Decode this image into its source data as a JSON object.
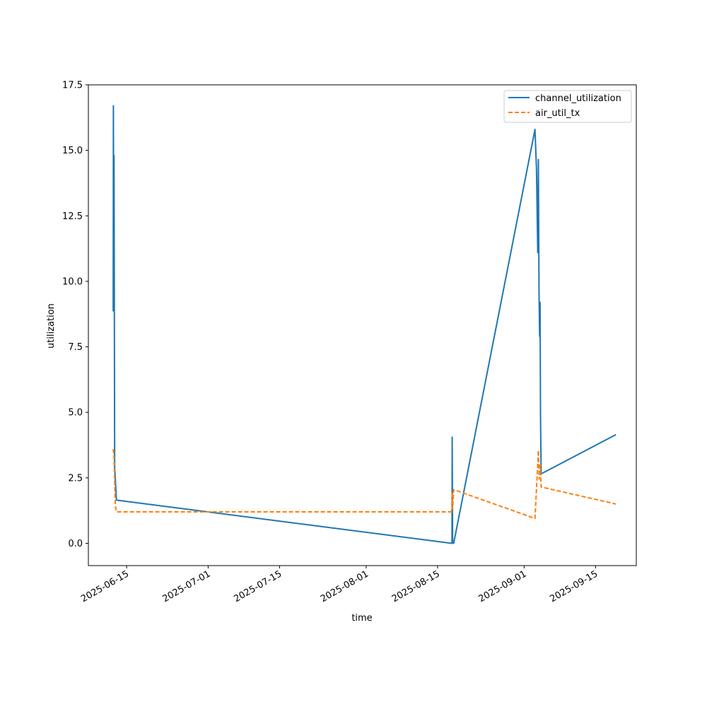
{
  "chart_data": {
    "type": "line",
    "title": "",
    "xlabel": "time",
    "ylabel": "utilization",
    "x_ticks": [
      "2025-06-15",
      "2025-07-01",
      "2025-07-15",
      "2025-08-01",
      "2025-08-15",
      "2025-09-01",
      "2025-09-15"
    ],
    "x_range": [
      "2025-06-07 12:00",
      "2025-09-23 00:00"
    ],
    "y_ticks": [
      0.0,
      2.5,
      5.0,
      7.5,
      10.0,
      12.5,
      15.0,
      17.5
    ],
    "y_tick_labels": [
      "0.0",
      "2.5",
      "5.0",
      "7.5",
      "10.0",
      "12.5",
      "15.0",
      "17.5"
    ],
    "ylim": [
      -0.85,
      17.5
    ],
    "grid": false,
    "legend_position": "top-right",
    "series": [
      {
        "name": "channel_utilization",
        "color": "#1f77b4",
        "dash": "solid",
        "points": [
          [
            "2025-06-12 09:00",
            8.85
          ],
          [
            "2025-06-12 10:00",
            16.7
          ],
          [
            "2025-06-12 12:00",
            9.0
          ],
          [
            "2025-06-12 13:00",
            14.8
          ],
          [
            "2025-06-12 16:00",
            2.9
          ],
          [
            "2025-06-13 00:00",
            1.65
          ],
          [
            "2025-08-17 20:00",
            0.0
          ],
          [
            "2025-08-17 21:00",
            4.05
          ],
          [
            "2025-08-17 23:00",
            0.05
          ],
          [
            "2025-08-18 04:00",
            0.0
          ],
          [
            "2025-09-03 03:00",
            15.8
          ],
          [
            "2025-09-03 10:00",
            14.3
          ],
          [
            "2025-09-03 16:00",
            11.1
          ],
          [
            "2025-09-03 19:00",
            14.65
          ],
          [
            "2025-09-03 22:00",
            9.6
          ],
          [
            "2025-09-04 01:00",
            7.9
          ],
          [
            "2025-09-04 03:00",
            9.2
          ],
          [
            "2025-09-04 05:00",
            4.95
          ],
          [
            "2025-09-04 08:00",
            2.65
          ],
          [
            "2025-09-19 00:00",
            4.15
          ]
        ]
      },
      {
        "name": "air_util_tx",
        "color": "#ff7f0e",
        "dash": "dashed",
        "points": [
          [
            "2025-06-12 09:00",
            3.6
          ],
          [
            "2025-06-12 13:00",
            3.3
          ],
          [
            "2025-06-12 19:00",
            1.45
          ],
          [
            "2025-06-13 00:00",
            1.2
          ],
          [
            "2025-08-17 20:00",
            1.2
          ],
          [
            "2025-08-17 21:00",
            1.95
          ],
          [
            "2025-08-17 23:00",
            1.3
          ],
          [
            "2025-08-18 04:00",
            2.05
          ],
          [
            "2025-09-03 03:00",
            0.95
          ],
          [
            "2025-09-03 14:00",
            2.7
          ],
          [
            "2025-09-03 19:00",
            3.55
          ],
          [
            "2025-09-03 23:00",
            2.45
          ],
          [
            "2025-09-04 04:00",
            3.05
          ],
          [
            "2025-09-04 08:00",
            2.15
          ],
          [
            "2025-09-19 00:00",
            1.5
          ]
        ]
      }
    ]
  }
}
